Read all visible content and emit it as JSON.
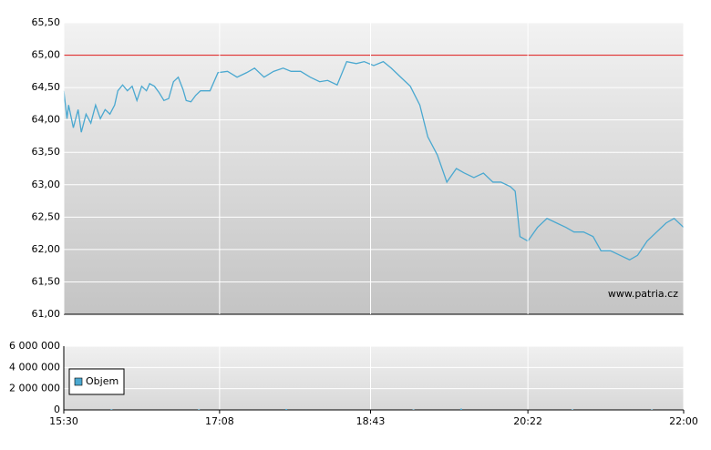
{
  "chart_data": [
    {
      "type": "line",
      "x": [
        930,
        932,
        933,
        936,
        939,
        941,
        944,
        947,
        950,
        953,
        956,
        959,
        962,
        964,
        967,
        970,
        973,
        976,
        979,
        982,
        984,
        987,
        990,
        993,
        996,
        999,
        1002,
        1005,
        1007,
        1010,
        1013,
        1016,
        1022,
        1027,
        1033,
        1039,
        1045,
        1050,
        1056,
        1062,
        1068,
        1073,
        1079,
        1085,
        1091,
        1096,
        1102,
        1108,
        1114,
        1119,
        1125,
        1131,
        1136,
        1142,
        1148,
        1154,
        1159,
        1165,
        1171,
        1177,
        1182,
        1188,
        1194,
        1200,
        1205,
        1211,
        1214,
        1217,
        1222,
        1228,
        1234,
        1240,
        1246,
        1251,
        1257,
        1263,
        1268,
        1274,
        1280,
        1286,
        1291,
        1297,
        1303,
        1309,
        1314,
        1320
      ],
      "series": [
        {
          "color": "#4aa8d0",
          "values": [
            64.45,
            64.02,
            64.23,
            63.88,
            64.16,
            63.81,
            64.09,
            63.95,
            64.23,
            64.02,
            64.16,
            64.09,
            64.23,
            64.45,
            64.54,
            64.45,
            64.52,
            64.3,
            64.52,
            64.45,
            64.56,
            64.52,
            64.42,
            64.3,
            64.33,
            64.59,
            64.66,
            64.47,
            64.3,
            64.28,
            64.38,
            64.45,
            64.45,
            64.73,
            64.75,
            64.66,
            64.73,
            64.8,
            64.66,
            64.75,
            64.8,
            64.75,
            64.75,
            64.66,
            64.59,
            64.61,
            64.54,
            64.9,
            64.87,
            64.9,
            64.84,
            64.9,
            64.8,
            64.66,
            64.52,
            64.23,
            63.74,
            63.46,
            63.04,
            63.25,
            63.18,
            63.11,
            63.18,
            63.04,
            63.04,
            62.97,
            62.9,
            62.2,
            62.13,
            62.34,
            62.48,
            62.41,
            62.34,
            62.27,
            62.27,
            62.2,
            61.98,
            61.98,
            61.91,
            61.84,
            61.91,
            62.13,
            62.27,
            62.41,
            62.48,
            62.34
          ]
        }
      ],
      "ylim": [
        61,
        65.5
      ],
      "yticks": [
        {
          "value": 61,
          "label": "61,00"
        },
        {
          "value": 61.5,
          "label": "61,50"
        },
        {
          "value": 62,
          "label": "62,00"
        },
        {
          "value": 62.5,
          "label": "62,50"
        },
        {
          "value": 63,
          "label": "63,00"
        },
        {
          "value": 63.5,
          "label": "63,50"
        },
        {
          "value": 64,
          "label": "64,00"
        },
        {
          "value": 64.5,
          "label": "64,50"
        },
        {
          "value": 65,
          "label": "65,00"
        },
        {
          "value": 65.5,
          "label": "65,50"
        }
      ],
      "xlim": [
        930,
        1320
      ],
      "reference_line": {
        "value": 65,
        "color": "#e03030"
      },
      "annotation": "www.patria.cz",
      "grid": true
    },
    {
      "type": "bar",
      "x": [
        960,
        1015,
        1070,
        1150,
        1180,
        1250,
        1300
      ],
      "series": [
        {
          "name": "Objem",
          "color": "#4aa8d0",
          "values": [
            60000,
            50000,
            90000,
            40000,
            120000,
            50000,
            40000
          ]
        }
      ],
      "ylim": [
        0,
        6000000
      ],
      "yticks": [
        {
          "value": 0,
          "label": "0"
        },
        {
          "value": 2000000,
          "label": "2 000 000"
        },
        {
          "value": 4000000,
          "label": "4 000 000"
        },
        {
          "value": 6000000,
          "label": "6 000 000"
        }
      ],
      "xlim": [
        930,
        1320
      ],
      "xticks": [
        {
          "value": 930,
          "label": "15:30"
        },
        {
          "value": 1028,
          "label": "17:08"
        },
        {
          "value": 1123,
          "label": "18:43"
        },
        {
          "value": 1222,
          "label": "20:22"
        },
        {
          "value": 1320,
          "label": "22:00"
        }
      ],
      "legend": "bottom-left",
      "grid": true
    }
  ]
}
